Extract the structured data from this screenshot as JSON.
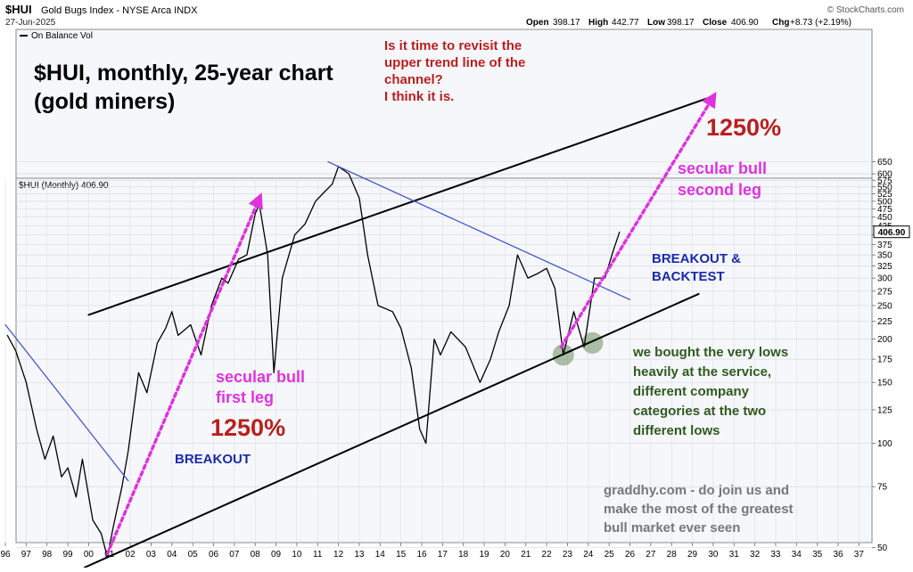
{
  "header": {
    "symbol": "$HUI",
    "name": "Gold Bugs Index - NYSE Arca INDX",
    "date": "27-Jun-2025",
    "credit": "© StockCharts.com",
    "ohlc": {
      "open_label": "Open",
      "open": "398.17",
      "high_label": "High",
      "high": "442.77",
      "low_label": "Low",
      "low": "398.17",
      "close_label": "Close",
      "close": "406.90",
      "chg_label": "Chg",
      "chg": "+8.73 (+2.19%)"
    }
  },
  "upper_panel": {
    "legend": "On Balance Vol",
    "title_line1": "$HUI, monthly, 25-year chart",
    "title_line2": "(gold miners)",
    "question_lines": [
      "Is it time to revisit the",
      "upper trend line of the",
      "channel?",
      "I think it is."
    ]
  },
  "price_panel": {
    "legend": "$HUI (Monthly) 406.90",
    "last_price": "406.90"
  },
  "annotations": {
    "pct_upper": "1250%",
    "pct_lower": "1250%",
    "second_leg": [
      "secular bull",
      "second leg"
    ],
    "first_leg": [
      "secular bull",
      "first leg"
    ],
    "breakout_backtest": [
      "BREAKOUT &",
      "BACKTEST"
    ],
    "breakout": "BREAKOUT",
    "bought_lines": [
      "we bought the very lows",
      "heavily at the service,",
      "different company",
      "categories at the two",
      "different lows"
    ],
    "promo_lines": [
      "graddhy.com - do join us and",
      "make the most of the greatest",
      "bull market ever seen"
    ]
  },
  "colors": {
    "price": "#000000",
    "trend_blue": "#3a4fc4",
    "magenta": "#dd33dd",
    "red_text": "#b82020",
    "blue_text": "#1a2aa8",
    "green_text": "#2f5a1f",
    "gray_text": "#777777",
    "panel_bg": "#f6f7fa"
  },
  "chart_data": {
    "type": "line",
    "title": "$HUI, monthly, 25-year chart",
    "y_scale": "log",
    "ylim": [
      42,
      680
    ],
    "xlim": [
      1996,
      2037.4
    ],
    "x_tick_labels": [
      "96",
      "97",
      "98",
      "99",
      "00",
      "01",
      "02",
      "03",
      "04",
      "05",
      "06",
      "07",
      "08",
      "09",
      "10",
      "11",
      "12",
      "13",
      "14",
      "15",
      "16",
      "17",
      "18",
      "19",
      "20",
      "21",
      "22",
      "23",
      "24",
      "25",
      "26",
      "27",
      "28",
      "29",
      "30",
      "31",
      "32",
      "33",
      "34",
      "35",
      "36",
      "37"
    ],
    "y_tick_labels": [
      "650",
      "600",
      "575",
      "550",
      "525",
      "500",
      "475",
      "450",
      "425",
      "400",
      "375",
      "350",
      "325",
      "300",
      "275",
      "250",
      "225",
      "200",
      "175",
      "150",
      "125",
      "100",
      "75",
      "50"
    ],
    "series": [
      {
        "name": "$HUI (Monthly)",
        "x": [
          1996.1,
          1996.5,
          1997.0,
          1997.5,
          1997.9,
          1998.3,
          1998.7,
          1999.0,
          1999.4,
          1999.7,
          2000.2,
          2000.6,
          2000.9,
          2001.2,
          2001.6,
          2001.9,
          2002.4,
          2002.8,
          2003.3,
          2003.7,
          2004.0,
          2004.3,
          2004.9,
          2005.4,
          2005.9,
          2006.4,
          2006.7,
          2007.2,
          2007.6,
          2008.0,
          2008.2,
          2008.6,
          2008.9,
          2009.3,
          2009.9,
          2010.4,
          2010.9,
          2011.3,
          2011.7,
          2012.0,
          2012.5,
          2013.0,
          2013.4,
          2013.9,
          2014.6,
          2015.0,
          2015.5,
          2015.9,
          2016.2,
          2016.6,
          2016.9,
          2017.4,
          2018.1,
          2018.8,
          2019.3,
          2019.7,
          2020.2,
          2020.6,
          2021.1,
          2021.6,
          2022.0,
          2022.4,
          2022.8,
          2023.3,
          2023.8,
          2024.3,
          2024.8,
          2025.2,
          2025.5
        ],
        "y": [
          205,
          185,
          150,
          110,
          90,
          105,
          80,
          85,
          70,
          90,
          60,
          55,
          47,
          58,
          75,
          95,
          160,
          140,
          195,
          215,
          240,
          205,
          220,
          180,
          250,
          300,
          290,
          340,
          350,
          460,
          490,
          350,
          160,
          300,
          400,
          430,
          500,
          530,
          560,
          630,
          600,
          510,
          350,
          250,
          240,
          215,
          165,
          110,
          100,
          200,
          180,
          210,
          190,
          150,
          175,
          210,
          250,
          350,
          300,
          310,
          320,
          280,
          180,
          240,
          190,
          300,
          300,
          360,
          407
        ]
      },
      {
        "name": "Upper channel line",
        "x": [
          2000.0,
          2030.1
        ],
        "y": [
          235,
          1010
        ]
      },
      {
        "name": "Lower channel line",
        "x": [
          1999.8,
          2029.3
        ],
        "y": [
          42,
          270
        ]
      },
      {
        "name": "Descending trendline 2011-2025",
        "x": [
          2011.5,
          2026.0
        ],
        "y": [
          650,
          260
        ]
      },
      {
        "name": "Descending trendline 1996-2001",
        "x": [
          1996.0,
          2001.9
        ],
        "y": [
          220,
          78
        ]
      },
      {
        "name": "Secular bull first leg",
        "x": [
          2000.9,
          2008.2
        ],
        "y": [
          48,
          510
        ]
      },
      {
        "name": "Secular bull second leg",
        "x": [
          2022.7,
          2030.0
        ],
        "y": [
          190,
          1000
        ]
      }
    ],
    "highlighted_lows": [
      {
        "x": 2022.8,
        "y": 180
      },
      {
        "x": 2024.2,
        "y": 195
      }
    ]
  }
}
